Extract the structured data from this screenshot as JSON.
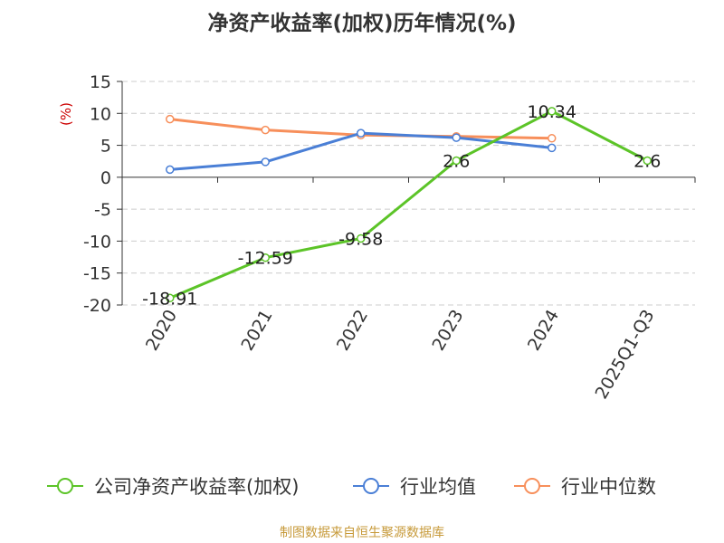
{
  "chart_data": {
    "type": "line",
    "title": "净资产收益率(加权)历年情况(%)",
    "ylabel": "(%)",
    "categories": [
      "2020",
      "2021",
      "2022",
      "2023",
      "2024",
      "2025Q1-Q3"
    ],
    "ylim": [
      -20,
      15
    ],
    "yticks": [
      15,
      10,
      5,
      0,
      -5,
      -10,
      -15,
      -20
    ],
    "grid": true,
    "legend_position": "bottom",
    "series": [
      {
        "name": "公司净资产收益率(加权)",
        "color": "#5cc428",
        "values": [
          -18.91,
          -12.59,
          -9.58,
          2.6,
          10.34,
          2.6
        ],
        "labels": [
          "-18.91",
          "-12.59",
          "-9.58",
          "2.6",
          "10.34",
          "2.6"
        ]
      },
      {
        "name": "行业均值",
        "color": "#4a7fd6",
        "values": [
          1.2,
          2.4,
          6.9,
          6.2,
          4.6,
          null
        ]
      },
      {
        "name": "行业中位数",
        "color": "#f78f5b",
        "values": [
          9.1,
          7.4,
          6.6,
          6.4,
          6.1,
          null
        ]
      }
    ]
  },
  "source": "制图数据来自恒生聚源数据库",
  "colors": {
    "ylabel": "#cc0000",
    "axis": "#333333",
    "grid": "#cccccc"
  }
}
